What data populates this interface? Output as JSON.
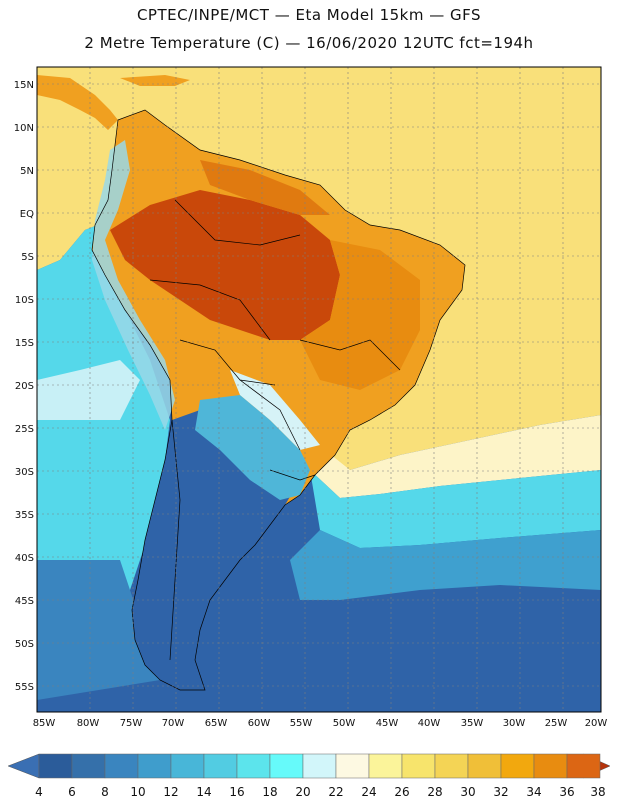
{
  "header": {
    "line1": "CPTEC/INPE/MCT —  Eta Model 15km — GFS",
    "line2": "2 Metre Temperature (C) — 16/06/2020 12UTC fct=194h"
  },
  "map": {
    "lat_ticks": [
      "15N",
      "10N",
      "5N",
      "EQ",
      "5S",
      "10S",
      "15S",
      "20S",
      "25S",
      "30S",
      "35S",
      "40S",
      "45S",
      "50S",
      "55S"
    ],
    "lon_ticks": [
      "85W",
      "80W",
      "75W",
      "70W",
      "65W",
      "60W",
      "55W",
      "50W",
      "45W",
      "40W",
      "35W",
      "30W",
      "25W",
      "20W"
    ],
    "palette": {
      "ocean_cold": "#2f63a8",
      "ocean_mid": "#3a85bf",
      "ocean_cyan": "#55d8ea",
      "ocean_pale": "#c8f0f6",
      "sea_warm": "#f9e07a",
      "land_hot": "#e07a10",
      "land_very_hot": "#c9480a",
      "land_warm": "#f0a020"
    }
  },
  "colorbar": {
    "labels": [
      "4",
      "6",
      "8",
      "10",
      "12",
      "14",
      "16",
      "18",
      "20",
      "22",
      "24",
      "26",
      "28",
      "30",
      "32",
      "34",
      "36",
      "38"
    ],
    "colors": [
      "#2b5c9a",
      "#3570aa",
      "#3a85bf",
      "#3f9dcc",
      "#48b6d8",
      "#52cce2",
      "#5ce4ec",
      "#66fafa",
      "#d2f6fa",
      "#fdf9e2",
      "#fbf49a",
      "#f7e46c",
      "#f4d455",
      "#f0bf38",
      "#f2a80e",
      "#e88c10",
      "#dc6614",
      "#c8420b"
    ],
    "low_arrow_color": "#3a6fb3",
    "high_arrow_color": "#b5330b"
  }
}
